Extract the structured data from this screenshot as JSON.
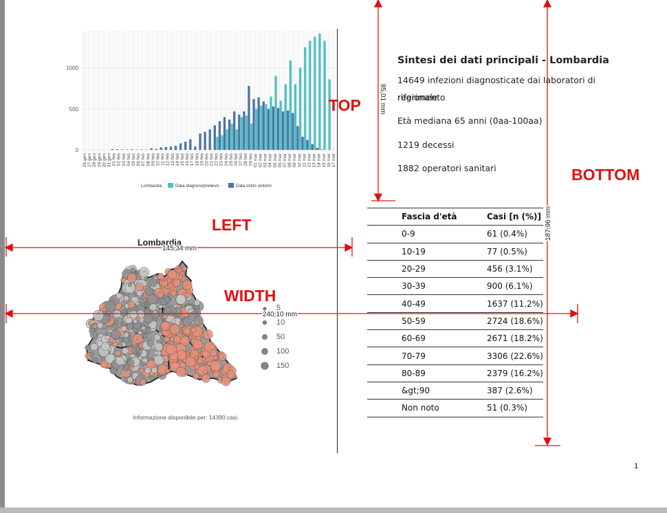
{
  "chart_data": {
    "type": "bar",
    "title": "",
    "ylabel": "",
    "xlabel": "",
    "ylim": [
      0,
      1450
    ],
    "yticks": [
      0,
      500,
      1000
    ],
    "categories": [
      "26 gen",
      "27 gen",
      "28 gen",
      "29 gen",
      "30 gen",
      "31 gen",
      "01 feb",
      "02 feb",
      "03 feb",
      "04 feb",
      "05 feb",
      "06 feb",
      "07 feb",
      "08 feb",
      "09 feb",
      "10 feb",
      "11 feb",
      "12 feb",
      "13 feb",
      "14 feb",
      "15 feb",
      "16 feb",
      "17 feb",
      "18 feb",
      "19 feb",
      "20 feb",
      "21 feb",
      "22 feb",
      "23 feb",
      "24 feb",
      "25 feb",
      "26 feb",
      "27 feb",
      "28 feb",
      "29 feb",
      "01 mar",
      "02 mar",
      "03 mar",
      "04 mar",
      "05 mar",
      "06 mar",
      "07 mar",
      "08 mar",
      "09 mar",
      "10 mar",
      "11 mar",
      "12 mar",
      "13 mar",
      "14 mar",
      "15 mar",
      "16 mar",
      "17 mar"
    ],
    "series": [
      {
        "name": "Data diagnosi/prelievo",
        "color": "#4fc0c2",
        "values": [
          0,
          0,
          0,
          0,
          0,
          0,
          0,
          0,
          0,
          0,
          0,
          0,
          0,
          0,
          0,
          0,
          0,
          0,
          0,
          0,
          0,
          0,
          0,
          0,
          0,
          0,
          0,
          160,
          180,
          250,
          320,
          250,
          400,
          420,
          320,
          500,
          540,
          560,
          650,
          900,
          600,
          800,
          1090,
          800,
          1000,
          1250,
          1330,
          1380,
          1420,
          1330,
          860,
          0
        ]
      },
      {
        "name": "Data inizio sintomi",
        "color": "#4a74a8",
        "values": [
          0,
          0,
          0,
          0,
          0,
          0,
          10,
          8,
          6,
          5,
          8,
          4,
          5,
          4,
          20,
          12,
          30,
          35,
          40,
          50,
          80,
          100,
          130,
          40,
          200,
          220,
          250,
          300,
          350,
          400,
          370,
          470,
          430,
          470,
          780,
          620,
          640,
          590,
          500,
          530,
          510,
          470,
          480,
          450,
          290,
          160,
          120,
          70,
          25,
          5,
          0,
          0
        ]
      }
    ],
    "legend_title": "Lombardia",
    "legend_position": "bottom"
  },
  "summary": {
    "title": "Sintesi dei dati principali - Lombardia",
    "line1": "14649 infezioni diagnosticate dai laboratori di riferimento",
    "line1b": "regionale",
    "line2": "Età mediana 65 anni (0aa-100aa)",
    "line3": "1219 decessi",
    "line4": "1882 operatori sanitari"
  },
  "age_table": {
    "headers": [
      "Fascia d'età",
      "Casi [n (%)]"
    ],
    "rows": [
      [
        "0-9",
        "61 (0.4%)"
      ],
      [
        "10-19",
        "77 (0.5%)"
      ],
      [
        "20-29",
        "456 (3.1%)"
      ],
      [
        "30-39",
        "900 (6.1%)"
      ],
      [
        "40-49",
        "1637 (11.2%)"
      ],
      [
        "50-59",
        "2724 (18.6%)"
      ],
      [
        "60-69",
        "2671 (18.2%)"
      ],
      [
        "70-79",
        "3306 (22.6%)"
      ],
      [
        "80-89",
        "2379 (16.2%)"
      ],
      [
        "&gt;90",
        "387 (2.6%)"
      ],
      [
        "Non noto",
        "51 (0.3%)"
      ]
    ]
  },
  "map": {
    "title": "Lombardia",
    "legend_sizes": [
      "5",
      "10",
      "50",
      "100",
      "150"
    ],
    "note": "Informazione disponibile per: 14390 casi.",
    "fill_color": "#e8907a"
  },
  "annotations": {
    "top": "TOP",
    "bottom": "BOTTOM",
    "left": "LEFT",
    "width": "WIDTH",
    "top_measure": "85,01 mm",
    "bottom_measure": "187,96 mm",
    "left_measure": "145,34 mm",
    "width_measure": "240,10 mm",
    "color": "#e01010"
  },
  "page_number": "1"
}
